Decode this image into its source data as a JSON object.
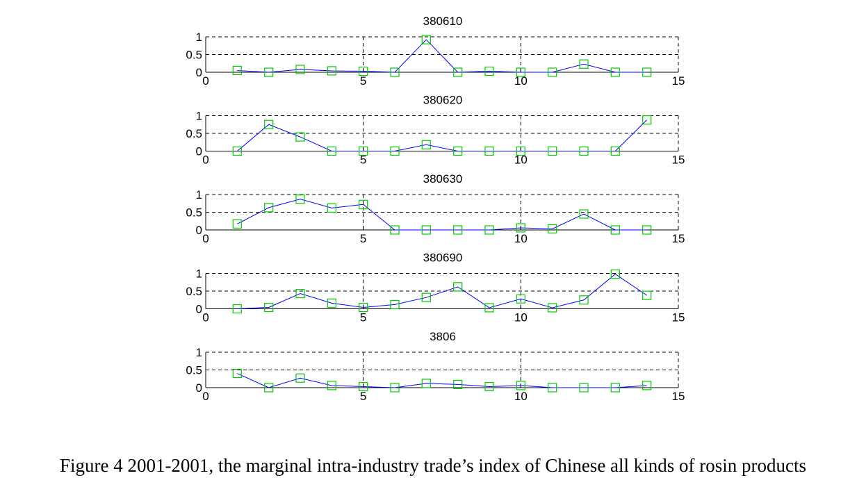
{
  "caption": "Figure 4 2001-2001, the marginal intra-industry trade’s index of Chinese all kinds of rosin products",
  "colors": {
    "line": "#0000ff",
    "marker": "#00cc00",
    "grid": "#000000",
    "axis": "#000000"
  },
  "chart_data": [
    {
      "type": "line",
      "title": "380610",
      "x": [
        1,
        2,
        3,
        4,
        5,
        6,
        7,
        8,
        9,
        10,
        11,
        12,
        13,
        14
      ],
      "series": [
        {
          "values": [
            0.05,
            0.0,
            0.08,
            0.04,
            0.03,
            0.0,
            0.92,
            0.0,
            0.03,
            0.0,
            0.0,
            0.23,
            0.0,
            0.0
          ]
        }
      ],
      "xlim": [
        0,
        15
      ],
      "ylim": [
        0,
        1
      ],
      "xticks": [
        0,
        5,
        10,
        15
      ],
      "yticks": [
        0,
        0.5,
        1
      ],
      "xtick_labels": [
        "0",
        "5",
        "10",
        "15"
      ],
      "ytick_labels": [
        "0",
        "0.5",
        "1"
      ],
      "grid": true,
      "marker": "square"
    },
    {
      "type": "line",
      "title": "380620",
      "x": [
        1,
        2,
        3,
        4,
        5,
        6,
        7,
        8,
        9,
        10,
        11,
        12,
        13,
        14
      ],
      "series": [
        {
          "values": [
            0.0,
            0.75,
            0.4,
            0.0,
            0.0,
            0.0,
            0.18,
            0.0,
            0.0,
            0.0,
            0.0,
            0.0,
            0.0,
            0.88
          ]
        }
      ],
      "xlim": [
        0,
        15
      ],
      "ylim": [
        0,
        1
      ],
      "xticks": [
        0,
        5,
        10,
        15
      ],
      "yticks": [
        0,
        0.5,
        1
      ],
      "xtick_labels": [
        "0",
        "5",
        "10",
        "15"
      ],
      "ytick_labels": [
        "0",
        "0.5",
        "1"
      ],
      "grid": true,
      "marker": "square"
    },
    {
      "type": "line",
      "title": "380630",
      "x": [
        1,
        2,
        3,
        4,
        5,
        6,
        7,
        8,
        9,
        10,
        11,
        12,
        13,
        14
      ],
      "series": [
        {
          "values": [
            0.17,
            0.63,
            0.87,
            0.62,
            0.72,
            0.0,
            0.0,
            0.0,
            0.0,
            0.06,
            0.03,
            0.45,
            0.0,
            0.0
          ]
        }
      ],
      "xlim": [
        0,
        15
      ],
      "ylim": [
        0,
        1
      ],
      "xticks": [
        0,
        5,
        10,
        15
      ],
      "yticks": [
        0,
        0.5,
        1
      ],
      "xtick_labels": [
        "0",
        "5",
        "10",
        "15"
      ],
      "ytick_labels": [
        "0",
        "0.5",
        "1"
      ],
      "grid": true,
      "marker": "square"
    },
    {
      "type": "line",
      "title": "380690",
      "x": [
        1,
        2,
        3,
        4,
        5,
        6,
        7,
        8,
        9,
        10,
        11,
        12,
        13,
        14
      ],
      "series": [
        {
          "values": [
            0.0,
            0.04,
            0.43,
            0.16,
            0.04,
            0.12,
            0.32,
            0.62,
            0.03,
            0.28,
            0.03,
            0.25,
            0.98,
            0.38
          ]
        }
      ],
      "xlim": [
        0,
        15
      ],
      "ylim": [
        0,
        1
      ],
      "xticks": [
        0,
        5,
        10,
        15
      ],
      "yticks": [
        0,
        0.5,
        1
      ],
      "xtick_labels": [
        "0",
        "5",
        "10",
        "15"
      ],
      "ytick_labels": [
        "0",
        "0.5",
        "1"
      ],
      "grid": true,
      "marker": "square"
    },
    {
      "type": "line",
      "title": "3806",
      "x": [
        1,
        2,
        3,
        4,
        5,
        6,
        7,
        8,
        9,
        10,
        11,
        12,
        13,
        14
      ],
      "series": [
        {
          "values": [
            0.4,
            0.0,
            0.27,
            0.06,
            0.03,
            0.0,
            0.12,
            0.09,
            0.03,
            0.06,
            0.0,
            0.0,
            0.0,
            0.06
          ]
        }
      ],
      "xlim": [
        0,
        15
      ],
      "ylim": [
        0,
        1
      ],
      "xticks": [
        0,
        5,
        10,
        15
      ],
      "yticks": [
        0,
        0.5,
        1
      ],
      "xtick_labels": [
        "0",
        "5",
        "10",
        "15"
      ],
      "ytick_labels": [
        "0",
        "0.5",
        "1"
      ],
      "grid": true,
      "marker": "square"
    }
  ]
}
